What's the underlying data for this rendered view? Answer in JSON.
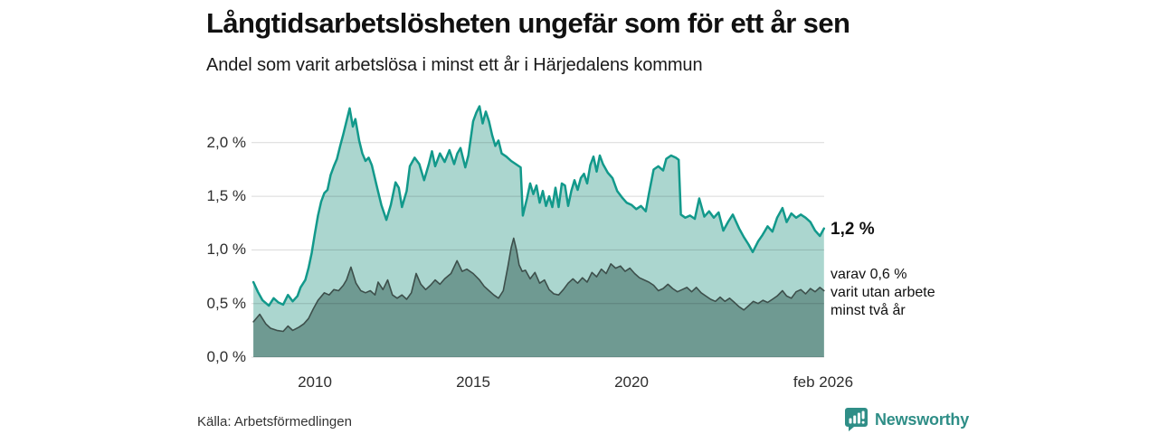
{
  "header": {
    "title": "Långtidsarbetslösheten ungefär som för ett år sen",
    "subtitle": "Andel som varit arbetslösa i minst ett år i Härjedalens kommun"
  },
  "chart_data": {
    "type": "area",
    "title": "Långtidsarbetslösheten ungefär som för ett år sen",
    "subtitle": "Andel som varit arbetslösa i minst ett år i Härjedalens kommun",
    "unit": "%",
    "grid": "horizontal-only",
    "x_range": [
      2008.06,
      2026.08
    ],
    "ylim": [
      0,
      2.4
    ],
    "colors": {
      "total_line": "#12998b",
      "total_fill": "#abd6cf",
      "two_year_line": "#3d4f4b",
      "two_year_fill": "#6f9a92",
      "grid_line": "#d9d9d9"
    },
    "y_ticks": [
      {
        "v": 2.0,
        "label": "2,0 %"
      },
      {
        "v": 1.5,
        "label": "1,5 %"
      },
      {
        "v": 1.0,
        "label": "1,0 %"
      },
      {
        "v": 0.5,
        "label": "0,5 %"
      },
      {
        "v": 0.0,
        "label": "0,0 %"
      }
    ],
    "x_ticks": [
      {
        "v": 2010,
        "label": "2010"
      },
      {
        "v": 2015,
        "label": "2015"
      },
      {
        "v": 2020,
        "label": "2020"
      },
      {
        "v": 2026.08,
        "label": "feb 2026"
      }
    ],
    "annotations": {
      "total_label": "1,2 %",
      "sub_lines": [
        "varav 0,6 %",
        "varit utan arbete",
        "minst två år"
      ]
    },
    "series": [
      {
        "name": "Andel arbetslösa minst ett år",
        "end_value": 1.2,
        "line": "#12998b",
        "fill": "#abd6cf",
        "width": 2.5,
        "points": [
          [
            2008.06,
            0.7
          ],
          [
            2008.2,
            0.61
          ],
          [
            2008.35,
            0.53
          ],
          [
            2008.55,
            0.48
          ],
          [
            2008.7,
            0.55
          ],
          [
            2008.85,
            0.51
          ],
          [
            2009.0,
            0.49
          ],
          [
            2009.15,
            0.58
          ],
          [
            2009.3,
            0.52
          ],
          [
            2009.45,
            0.57
          ],
          [
            2009.55,
            0.65
          ],
          [
            2009.7,
            0.72
          ],
          [
            2009.8,
            0.83
          ],
          [
            2009.9,
            0.97
          ],
          [
            2010.0,
            1.15
          ],
          [
            2010.1,
            1.32
          ],
          [
            2010.2,
            1.45
          ],
          [
            2010.3,
            1.53
          ],
          [
            2010.4,
            1.56
          ],
          [
            2010.5,
            1.7
          ],
          [
            2010.6,
            1.78
          ],
          [
            2010.7,
            1.85
          ],
          [
            2010.8,
            1.97
          ],
          [
            2010.9,
            2.08
          ],
          [
            2011.0,
            2.2
          ],
          [
            2011.1,
            2.32
          ],
          [
            2011.2,
            2.15
          ],
          [
            2011.28,
            2.22
          ],
          [
            2011.4,
            2.02
          ],
          [
            2011.5,
            1.9
          ],
          [
            2011.6,
            1.83
          ],
          [
            2011.7,
            1.86
          ],
          [
            2011.8,
            1.79
          ],
          [
            2011.95,
            1.6
          ],
          [
            2012.1,
            1.42
          ],
          [
            2012.26,
            1.28
          ],
          [
            2012.4,
            1.42
          ],
          [
            2012.55,
            1.63
          ],
          [
            2012.65,
            1.58
          ],
          [
            2012.75,
            1.4
          ],
          [
            2012.9,
            1.55
          ],
          [
            2013.0,
            1.78
          ],
          [
            2013.15,
            1.86
          ],
          [
            2013.3,
            1.8
          ],
          [
            2013.45,
            1.65
          ],
          [
            2013.6,
            1.8
          ],
          [
            2013.7,
            1.92
          ],
          [
            2013.8,
            1.78
          ],
          [
            2013.95,
            1.9
          ],
          [
            2014.1,
            1.82
          ],
          [
            2014.25,
            1.93
          ],
          [
            2014.4,
            1.8
          ],
          [
            2014.5,
            1.9
          ],
          [
            2014.6,
            1.95
          ],
          [
            2014.75,
            1.77
          ],
          [
            2014.85,
            1.88
          ],
          [
            2015.0,
            2.2
          ],
          [
            2015.1,
            2.28
          ],
          [
            2015.2,
            2.34
          ],
          [
            2015.3,
            2.18
          ],
          [
            2015.4,
            2.29
          ],
          [
            2015.5,
            2.2
          ],
          [
            2015.6,
            2.07
          ],
          [
            2015.7,
            1.97
          ],
          [
            2015.8,
            2.02
          ],
          [
            2015.9,
            1.9
          ],
          [
            2016.05,
            1.87
          ],
          [
            2016.2,
            1.83
          ],
          [
            2016.35,
            1.8
          ],
          [
            2016.5,
            1.77
          ],
          [
            2016.57,
            1.32
          ],
          [
            2016.7,
            1.48
          ],
          [
            2016.8,
            1.62
          ],
          [
            2016.9,
            1.52
          ],
          [
            2017.0,
            1.6
          ],
          [
            2017.1,
            1.44
          ],
          [
            2017.2,
            1.55
          ],
          [
            2017.3,
            1.41
          ],
          [
            2017.4,
            1.5
          ],
          [
            2017.5,
            1.4
          ],
          [
            2017.6,
            1.58
          ],
          [
            2017.7,
            1.4
          ],
          [
            2017.8,
            1.62
          ],
          [
            2017.9,
            1.6
          ],
          [
            2018.0,
            1.41
          ],
          [
            2018.1,
            1.55
          ],
          [
            2018.2,
            1.65
          ],
          [
            2018.3,
            1.56
          ],
          [
            2018.4,
            1.67
          ],
          [
            2018.5,
            1.71
          ],
          [
            2018.6,
            1.62
          ],
          [
            2018.7,
            1.79
          ],
          [
            2018.8,
            1.87
          ],
          [
            2018.9,
            1.73
          ],
          [
            2019.0,
            1.88
          ],
          [
            2019.1,
            1.8
          ],
          [
            2019.25,
            1.72
          ],
          [
            2019.4,
            1.67
          ],
          [
            2019.55,
            1.55
          ],
          [
            2019.7,
            1.49
          ],
          [
            2019.85,
            1.44
          ],
          [
            2020.0,
            1.42
          ],
          [
            2020.15,
            1.38
          ],
          [
            2020.3,
            1.41
          ],
          [
            2020.45,
            1.36
          ],
          [
            2020.55,
            1.52
          ],
          [
            2020.7,
            1.75
          ],
          [
            2020.85,
            1.78
          ],
          [
            2021.0,
            1.74
          ],
          [
            2021.1,
            1.85
          ],
          [
            2021.25,
            1.88
          ],
          [
            2021.4,
            1.86
          ],
          [
            2021.49,
            1.84
          ],
          [
            2021.56,
            1.33
          ],
          [
            2021.7,
            1.3
          ],
          [
            2021.85,
            1.32
          ],
          [
            2022.0,
            1.29
          ],
          [
            2022.14,
            1.48
          ],
          [
            2022.3,
            1.31
          ],
          [
            2022.45,
            1.36
          ],
          [
            2022.6,
            1.3
          ],
          [
            2022.75,
            1.35
          ],
          [
            2022.9,
            1.18
          ],
          [
            2023.05,
            1.26
          ],
          [
            2023.2,
            1.33
          ],
          [
            2023.4,
            1.2
          ],
          [
            2023.55,
            1.12
          ],
          [
            2023.7,
            1.05
          ],
          [
            2023.83,
            0.98
          ],
          [
            2024.0,
            1.08
          ],
          [
            2024.14,
            1.14
          ],
          [
            2024.3,
            1.22
          ],
          [
            2024.45,
            1.17
          ],
          [
            2024.6,
            1.3
          ],
          [
            2024.77,
            1.39
          ],
          [
            2024.9,
            1.26
          ],
          [
            2025.05,
            1.34
          ],
          [
            2025.2,
            1.3
          ],
          [
            2025.35,
            1.33
          ],
          [
            2025.5,
            1.3
          ],
          [
            2025.65,
            1.26
          ],
          [
            2025.8,
            1.18
          ],
          [
            2025.95,
            1.13
          ],
          [
            2026.08,
            1.2
          ]
        ]
      },
      {
        "name": "Varav utan arbete minst två år",
        "end_value": 0.6,
        "line": "#3d4f4b",
        "fill": "#6f9a92",
        "width": 1.6,
        "points": [
          [
            2008.06,
            0.33
          ],
          [
            2008.26,
            0.4
          ],
          [
            2008.45,
            0.31
          ],
          [
            2008.6,
            0.27
          ],
          [
            2008.8,
            0.25
          ],
          [
            2009.0,
            0.24
          ],
          [
            2009.15,
            0.29
          ],
          [
            2009.3,
            0.25
          ],
          [
            2009.5,
            0.28
          ],
          [
            2009.65,
            0.31
          ],
          [
            2009.8,
            0.36
          ],
          [
            2009.95,
            0.45
          ],
          [
            2010.1,
            0.53
          ],
          [
            2010.3,
            0.6
          ],
          [
            2010.45,
            0.58
          ],
          [
            2010.6,
            0.63
          ],
          [
            2010.75,
            0.62
          ],
          [
            2010.9,
            0.67
          ],
          [
            2011.0,
            0.72
          ],
          [
            2011.14,
            0.84
          ],
          [
            2011.3,
            0.69
          ],
          [
            2011.45,
            0.62
          ],
          [
            2011.6,
            0.6
          ],
          [
            2011.75,
            0.62
          ],
          [
            2011.9,
            0.58
          ],
          [
            2012.0,
            0.7
          ],
          [
            2012.15,
            0.63
          ],
          [
            2012.3,
            0.72
          ],
          [
            2012.45,
            0.58
          ],
          [
            2012.6,
            0.55
          ],
          [
            2012.75,
            0.58
          ],
          [
            2012.9,
            0.54
          ],
          [
            2013.05,
            0.6
          ],
          [
            2013.2,
            0.78
          ],
          [
            2013.35,
            0.68
          ],
          [
            2013.5,
            0.63
          ],
          [
            2013.65,
            0.67
          ],
          [
            2013.8,
            0.72
          ],
          [
            2013.95,
            0.68
          ],
          [
            2014.1,
            0.73
          ],
          [
            2014.3,
            0.78
          ],
          [
            2014.49,
            0.9
          ],
          [
            2014.65,
            0.8
          ],
          [
            2014.8,
            0.82
          ],
          [
            2015.0,
            0.78
          ],
          [
            2015.2,
            0.72
          ],
          [
            2015.35,
            0.66
          ],
          [
            2015.5,
            0.62
          ],
          [
            2015.65,
            0.58
          ],
          [
            2015.8,
            0.55
          ],
          [
            2015.95,
            0.62
          ],
          [
            2016.1,
            0.85
          ],
          [
            2016.2,
            1.02
          ],
          [
            2016.28,
            1.11
          ],
          [
            2016.37,
            1.0
          ],
          [
            2016.45,
            0.86
          ],
          [
            2016.55,
            0.8
          ],
          [
            2016.65,
            0.81
          ],
          [
            2016.8,
            0.73
          ],
          [
            2016.95,
            0.79
          ],
          [
            2017.1,
            0.69
          ],
          [
            2017.25,
            0.72
          ],
          [
            2017.4,
            0.63
          ],
          [
            2017.55,
            0.59
          ],
          [
            2017.7,
            0.58
          ],
          [
            2017.85,
            0.63
          ],
          [
            2018.0,
            0.69
          ],
          [
            2018.15,
            0.73
          ],
          [
            2018.3,
            0.69
          ],
          [
            2018.45,
            0.74
          ],
          [
            2018.6,
            0.7
          ],
          [
            2018.75,
            0.79
          ],
          [
            2018.9,
            0.75
          ],
          [
            2019.05,
            0.82
          ],
          [
            2019.2,
            0.78
          ],
          [
            2019.35,
            0.87
          ],
          [
            2019.5,
            0.83
          ],
          [
            2019.65,
            0.85
          ],
          [
            2019.8,
            0.8
          ],
          [
            2019.95,
            0.83
          ],
          [
            2020.1,
            0.78
          ],
          [
            2020.25,
            0.74
          ],
          [
            2020.4,
            0.72
          ],
          [
            2020.55,
            0.7
          ],
          [
            2020.7,
            0.67
          ],
          [
            2020.85,
            0.62
          ],
          [
            2021.0,
            0.64
          ],
          [
            2021.15,
            0.68
          ],
          [
            2021.3,
            0.64
          ],
          [
            2021.45,
            0.61
          ],
          [
            2021.6,
            0.63
          ],
          [
            2021.75,
            0.65
          ],
          [
            2021.9,
            0.61
          ],
          [
            2022.05,
            0.65
          ],
          [
            2022.2,
            0.6
          ],
          [
            2022.35,
            0.57
          ],
          [
            2022.5,
            0.54
          ],
          [
            2022.65,
            0.52
          ],
          [
            2022.8,
            0.56
          ],
          [
            2022.95,
            0.52
          ],
          [
            2023.1,
            0.55
          ],
          [
            2023.25,
            0.51
          ],
          [
            2023.4,
            0.47
          ],
          [
            2023.55,
            0.44
          ],
          [
            2023.7,
            0.48
          ],
          [
            2023.85,
            0.52
          ],
          [
            2024.0,
            0.5
          ],
          [
            2024.15,
            0.53
          ],
          [
            2024.3,
            0.51
          ],
          [
            2024.45,
            0.54
          ],
          [
            2024.6,
            0.57
          ],
          [
            2024.77,
            0.62
          ],
          [
            2024.9,
            0.57
          ],
          [
            2025.05,
            0.55
          ],
          [
            2025.2,
            0.61
          ],
          [
            2025.35,
            0.63
          ],
          [
            2025.5,
            0.59
          ],
          [
            2025.65,
            0.64
          ],
          [
            2025.8,
            0.61
          ],
          [
            2025.95,
            0.65
          ],
          [
            2026.08,
            0.62
          ]
        ]
      }
    ]
  },
  "footer": {
    "source": "Källa: Arbetsförmedlingen",
    "brand": "Newsworthy"
  }
}
